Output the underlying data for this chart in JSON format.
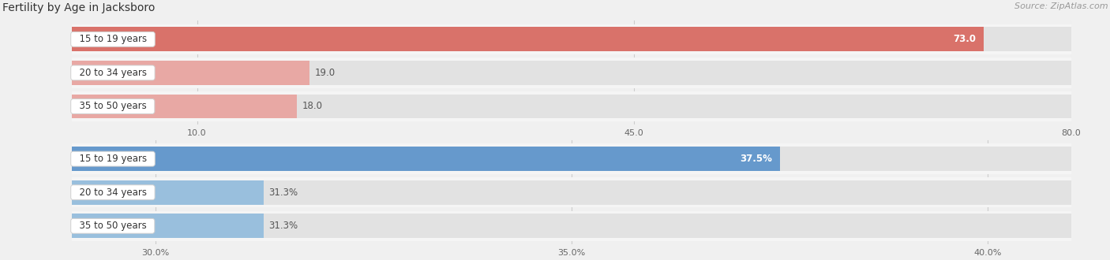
{
  "title": "Fertility by Age in Jacksboro",
  "source": "Source: ZipAtlas.com",
  "top_chart": {
    "categories": [
      "15 to 19 years",
      "20 to 34 years",
      "35 to 50 years"
    ],
    "values": [
      73.0,
      19.0,
      18.0
    ],
    "xlim": [
      0,
      80.0
    ],
    "xticks": [
      10.0,
      45.0,
      80.0
    ],
    "xtick_labels": [
      "10.0",
      "45.0",
      "80.0"
    ],
    "bar_color_main": "#d9726a",
    "bar_color_light": "#e8a8a4",
    "value_color_inside": "white",
    "value_color_outside": "#555555"
  },
  "bottom_chart": {
    "categories": [
      "15 to 19 years",
      "20 to 34 years",
      "35 to 50 years"
    ],
    "values": [
      37.5,
      31.3,
      31.3
    ],
    "xlim": [
      29.0,
      41.0
    ],
    "xticks": [
      30.0,
      35.0,
      40.0
    ],
    "xtick_labels": [
      "30.0%",
      "35.0%",
      "40.0%"
    ],
    "bar_color_main": "#6699cc",
    "bar_color_light": "#99bfdd",
    "value_color_inside": "white",
    "value_color_outside": "#555555"
  },
  "bg_color": "#f0f0f0",
  "bar_bg_color": "#e2e2e2",
  "bar_row_bg": "#e8e8e8",
  "title_fontsize": 10,
  "source_fontsize": 8,
  "label_fontsize": 8.5,
  "value_fontsize": 8.5
}
